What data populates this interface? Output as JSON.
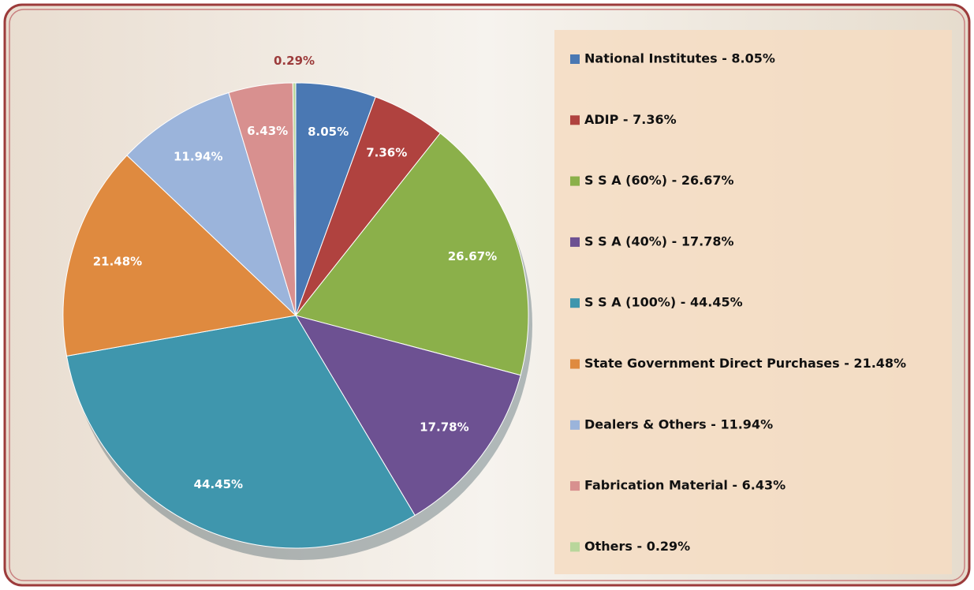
{
  "chart_data": {
    "type": "pie",
    "categories": [
      "National Institutes - 8.05%",
      "ADIP  - 7.36%",
      "S S A (60%) - 26.67%",
      "S S A (40%) - 17.78%",
      "S S A (100%) - 44.45%",
      "State Government Direct Purchases - 21.48%",
      "Dealers & Others - 11.94%",
      "Fabrication Material - 6.43%",
      "Others - 0.29%"
    ],
    "values": [
      8.05,
      7.36,
      26.67,
      17.78,
      44.45,
      21.48,
      11.94,
      6.43,
      0.29
    ],
    "value_labels": [
      "8.05%",
      "7.36%",
      "26.67%",
      "17.78%",
      "44.45%",
      "21.48%",
      "11.94%",
      "6.43%",
      "0.29%"
    ],
    "colors": [
      "#4a78b3",
      "#b0423f",
      "#8bb04a",
      "#6d5192",
      "#3f96ad",
      "#df8a3f",
      "#9bb4db",
      "#d8908f",
      "#b9d69b"
    ],
    "legend": "right"
  }
}
